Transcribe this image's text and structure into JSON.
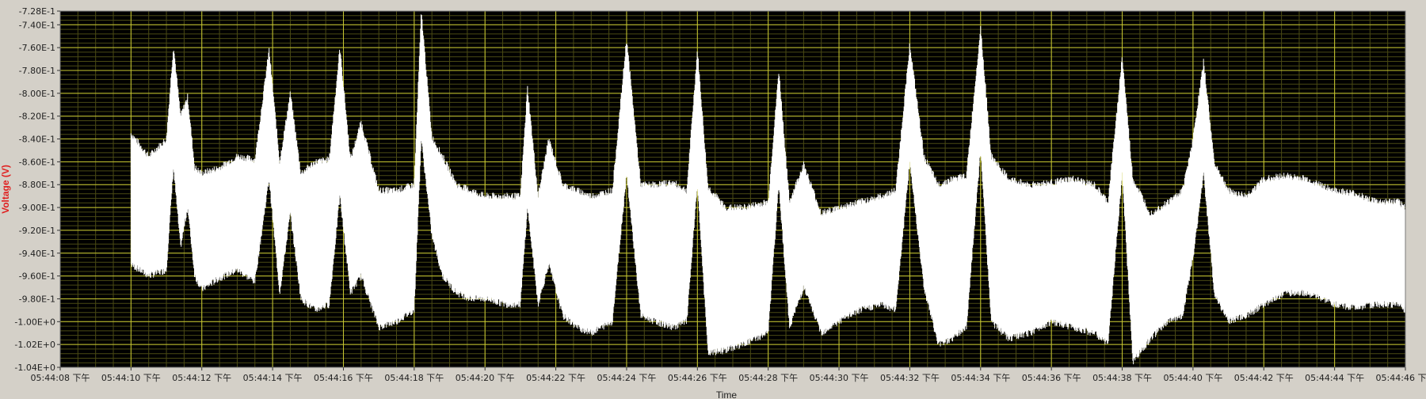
{
  "chart_data": {
    "type": "line",
    "title": "",
    "xlabel": "Time",
    "ylabel": "Voltage (V)",
    "xlim": [
      "05:44:08",
      "05:44:46"
    ],
    "ylim": [
      -1.04,
      -0.728
    ],
    "grid": true,
    "legend": "none",
    "colors": {
      "plot_background": "#000000",
      "trace": "#ffffff",
      "major_grid": "#c8c832",
      "minor_grid": "#4a4a14",
      "frame": "#d4d0c8",
      "ylabel": "#e02020",
      "tick_text": "#222222"
    },
    "y_ticks": [
      "-7.28E-1",
      "-7.40E-1",
      "-7.60E-1",
      "-7.80E-1",
      "-8.00E-1",
      "-8.20E-1",
      "-8.40E-1",
      "-8.60E-1",
      "-8.80E-1",
      "-9.00E-1",
      "-9.20E-1",
      "-9.40E-1",
      "-9.60E-1",
      "-9.80E-1",
      "-1.00E+0",
      "-1.02E+0",
      "-1.04E+0"
    ],
    "x_ticks": [
      "05:44:08 下午",
      "05:44:10 下午",
      "05:44:12 下午",
      "05:44:14 下午",
      "05:44:16 下午",
      "05:44:18 下午",
      "05:44:20 下午",
      "05:44:22 下午",
      "05:44:24 下午",
      "05:44:26 下午",
      "05:44:28 下午",
      "05:44:30 下午",
      "05:44:32 下午",
      "05:44:34 下午",
      "05:44:36 下午",
      "05:44:38 下午",
      "05:44:40 下午",
      "05:44:42 下午",
      "05:44:44 下午",
      "05:44:46 下午"
    ],
    "series": [
      {
        "x": [
          "05:44:10",
          "05:44:10.5",
          "05:44:11",
          "05:44:11.2",
          "05:44:11.4",
          "05:44:11.6",
          "05:44:11.8",
          "05:44:12",
          "05:44:12.5",
          "05:44:13",
          "05:44:13.5",
          "05:44:13.9",
          "05:44:14.2",
          "05:44:14.5",
          "05:44:14.8",
          "05:44:15.2",
          "05:44:15.6",
          "05:44:15.9",
          "05:44:16.2",
          "05:44:16.5",
          "05:44:17",
          "05:44:17.5",
          "05:44:18",
          "05:44:18.2",
          "05:44:18.5",
          "05:44:18.8",
          "05:44:19.2",
          "05:44:19.6",
          "05:44:20",
          "05:44:20.6",
          "05:44:21",
          "05:44:21.2",
          "05:44:21.5",
          "05:44:21.8",
          "05:44:22.2",
          "05:44:22.6",
          "05:44:23",
          "05:44:23.6",
          "05:44:24",
          "05:44:24.4",
          "05:44:24.8",
          "05:44:25.3",
          "05:44:25.7",
          "05:44:26",
          "05:44:26.3",
          "05:44:26.8",
          "05:44:27.3",
          "05:44:28",
          "05:44:28.3",
          "05:44:28.6",
          "05:44:29",
          "05:44:29.5",
          "05:44:30",
          "05:44:30.6",
          "05:44:31.2",
          "05:44:31.6",
          "05:44:32",
          "05:44:32.4",
          "05:44:32.8",
          "05:44:33.2",
          "05:44:33.6",
          "05:44:34",
          "05:44:34.3",
          "05:44:34.8",
          "05:44:35.4",
          "05:44:36",
          "05:44:36.6",
          "05:44:37.2",
          "05:44:37.6",
          "05:44:38",
          "05:44:38.3",
          "05:44:38.8",
          "05:44:39.3",
          "05:44:39.7",
          "05:44:40",
          "05:44:40.3",
          "05:44:40.6",
          "05:44:41",
          "05:44:41.5",
          "05:44:42",
          "05:44:42.6",
          "05:44:43.2",
          "05:44:44",
          "05:44:44.6",
          "05:44:45.2",
          "05:44:45.8",
          "05:44:46"
        ],
        "max": [
          -0.835,
          -0.855,
          -0.84,
          -0.758,
          -0.82,
          -0.803,
          -0.865,
          -0.87,
          -0.865,
          -0.855,
          -0.858,
          -0.762,
          -0.86,
          -0.8,
          -0.87,
          -0.86,
          -0.858,
          -0.76,
          -0.858,
          -0.825,
          -0.885,
          -0.885,
          -0.88,
          -0.728,
          -0.838,
          -0.855,
          -0.88,
          -0.885,
          -0.89,
          -0.89,
          -0.89,
          -0.795,
          -0.89,
          -0.84,
          -0.88,
          -0.885,
          -0.89,
          -0.885,
          -0.752,
          -0.88,
          -0.88,
          -0.878,
          -0.885,
          -0.762,
          -0.882,
          -0.9,
          -0.9,
          -0.895,
          -0.78,
          -0.895,
          -0.862,
          -0.905,
          -0.9,
          -0.895,
          -0.89,
          -0.885,
          -0.757,
          -0.855,
          -0.88,
          -0.875,
          -0.872,
          -0.742,
          -0.855,
          -0.875,
          -0.88,
          -0.878,
          -0.875,
          -0.88,
          -0.895,
          -0.768,
          -0.875,
          -0.905,
          -0.895,
          -0.885,
          -0.84,
          -0.772,
          -0.86,
          -0.885,
          -0.89,
          -0.875,
          -0.872,
          -0.875,
          -0.885,
          -0.888,
          -0.895,
          -0.895,
          -0.9
        ],
        "min": [
          -0.95,
          -0.96,
          -0.955,
          -0.865,
          -0.935,
          -0.9,
          -0.96,
          -0.972,
          -0.962,
          -0.955,
          -0.965,
          -0.875,
          -0.975,
          -0.905,
          -0.98,
          -0.99,
          -0.985,
          -0.89,
          -0.975,
          -0.96,
          -1.005,
          -1.0,
          -0.99,
          -0.84,
          -0.925,
          -0.96,
          -0.975,
          -0.98,
          -0.98,
          -0.985,
          -0.985,
          -0.9,
          -0.985,
          -0.95,
          -0.995,
          -1.005,
          -1.01,
          -1.0,
          -0.87,
          -0.995,
          -1.0,
          -1.005,
          -1.0,
          -0.88,
          -1.028,
          -1.025,
          -1.02,
          -1.01,
          -0.88,
          -1.005,
          -0.97,
          -1.01,
          -1.0,
          -0.99,
          -0.985,
          -0.99,
          -0.86,
          -0.97,
          -1.02,
          -1.015,
          -1.005,
          -0.85,
          -1.0,
          -1.015,
          -1.01,
          -1.0,
          -1.005,
          -1.01,
          -1.02,
          -0.87,
          -1.035,
          -1.015,
          -1.0,
          -0.995,
          -0.945,
          -0.87,
          -0.975,
          -1.0,
          -0.995,
          -0.985,
          -0.975,
          -0.975,
          -0.985,
          -0.988,
          -0.985,
          -0.985,
          -0.99
        ]
      }
    ]
  }
}
